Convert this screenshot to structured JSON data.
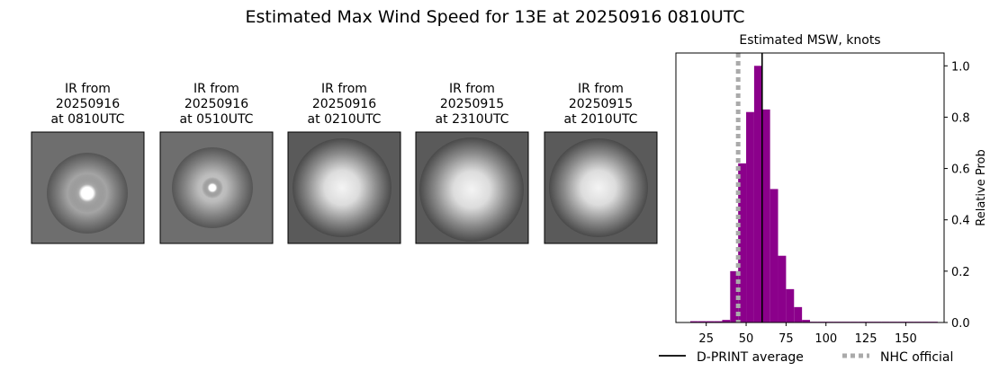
{
  "title": "Estimated Max Wind Speed for 13E at 20250916 0810UTC",
  "panels": [
    {
      "lines": [
        "IR from",
        "20250916",
        "at 0810UTC"
      ]
    },
    {
      "lines": [
        "IR from",
        "20250916",
        "at 0510UTC"
      ]
    },
    {
      "lines": [
        "IR from",
        "20250916",
        "at 0210UTC"
      ]
    },
    {
      "lines": [
        "IR from",
        "20250915",
        "at 2310UTC"
      ]
    },
    {
      "lines": [
        "IR from",
        "20250915",
        "at 2010UTC"
      ]
    }
  ],
  "chart_data": {
    "type": "histogram",
    "title": "Estimated MSW, knots",
    "ylabel": "Relative Prob",
    "color": "#8b008b",
    "bins": [
      15,
      20,
      25,
      30,
      35,
      40,
      45,
      50,
      55,
      60,
      65,
      70,
      75,
      80,
      85,
      90,
      95,
      100,
      105,
      110,
      115,
      120,
      125,
      130,
      135,
      140,
      145,
      150,
      155,
      160,
      165,
      170
    ],
    "values": [
      0.005,
      0.005,
      0.005,
      0.005,
      0.01,
      0.2,
      0.62,
      0.82,
      1.0,
      0.83,
      0.52,
      0.26,
      0.13,
      0.06,
      0.01,
      0.003,
      0.003,
      0.003,
      0.003,
      0.003,
      0.003,
      0.003,
      0.003,
      0.003,
      0.003,
      0.003,
      0.003,
      0.003,
      0.003,
      0.003,
      0.003
    ],
    "xlim": [
      6,
      174
    ],
    "xticks": [
      25,
      50,
      75,
      100,
      125,
      150
    ],
    "ylim": [
      0,
      1.05
    ],
    "yticks": [
      {
        "value": 0,
        "label": "0.0"
      },
      0.2,
      0.4,
      0.6,
      0.8,
      {
        "value": 1,
        "label": "1.0"
      }
    ],
    "reference_lines": [
      {
        "name": "D-PRINT average",
        "value": 60,
        "color": "#000000",
        "style": "solid"
      },
      {
        "name": "NHC official",
        "value": 45,
        "color": "#aaaaaa",
        "style": "dotted"
      }
    ]
  }
}
